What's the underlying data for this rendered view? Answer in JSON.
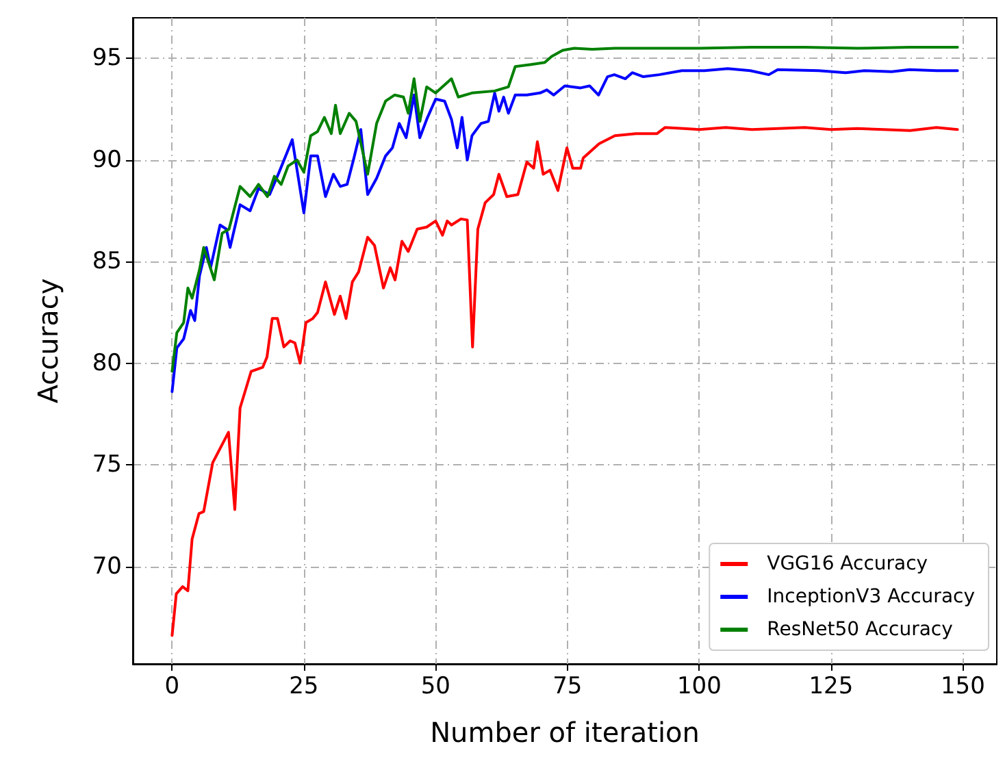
{
  "chart_data": {
    "type": "line",
    "xlabel": "Number of iteration",
    "ylabel": "Accuracy",
    "xlim": [
      -7.45,
      156.45
    ],
    "ylim": [
      65.2,
      97.0
    ],
    "xticks": [
      0,
      25,
      50,
      75,
      100,
      125,
      150
    ],
    "yticks": [
      70,
      75,
      80,
      85,
      90,
      95
    ],
    "grid": true,
    "legend": "bottom right",
    "marker": "none",
    "line_style": "solid",
    "series": [
      {
        "name": "VGG16 Accuracy",
        "color": "#ff0000",
        "x": [
          0,
          0.8,
          2,
          3,
          3.8,
          5.1,
          6,
          7.7,
          10.7,
          11.9,
          12.9,
          15,
          17.2,
          18,
          19,
          20,
          21.2,
          22.4,
          23.3,
          24.3,
          25.4,
          26.7,
          27.6,
          29.1,
          30.8,
          31.9,
          33,
          34.2,
          35.4,
          37.1,
          38.4,
          40.1,
          41.4,
          42.3,
          43.6,
          44.8,
          46.5,
          48.3,
          50,
          51.3,
          52.2,
          53,
          54.8,
          56,
          57,
          58,
          59.4,
          61,
          62,
          63.5,
          65.6,
          67.3,
          68.6,
          69.3,
          70.4,
          71.7,
          73.2,
          74.9,
          76,
          77.5,
          78,
          81,
          84,
          88,
          92,
          93.5,
          97,
          100,
          105,
          110,
          115,
          120,
          125,
          130,
          135,
          140,
          145,
          149
        ],
        "values": [
          66.6,
          68.65,
          69.0,
          68.8,
          71.35,
          72.6,
          72.7,
          75.1,
          76.6,
          72.8,
          77.8,
          79.6,
          79.8,
          80.3,
          82.2,
          82.2,
          80.8,
          81.1,
          81.0,
          80.0,
          82.0,
          82.2,
          82.5,
          84.0,
          82.4,
          83.3,
          82.2,
          84.0,
          84.5,
          86.2,
          85.8,
          83.7,
          84.7,
          84.1,
          86.0,
          85.5,
          86.6,
          86.7,
          87.0,
          86.3,
          87.0,
          86.8,
          87.1,
          87.05,
          80.8,
          86.6,
          87.9,
          88.3,
          89.3,
          88.2,
          88.3,
          89.9,
          89.6,
          90.9,
          89.3,
          89.5,
          88.5,
          90.6,
          89.6,
          89.6,
          90.1,
          90.8,
          91.2,
          91.3,
          91.3,
          91.6,
          91.55,
          91.5,
          91.6,
          91.5,
          91.55,
          91.6,
          91.5,
          91.55,
          91.5,
          91.45,
          91.6,
          91.5
        ]
      },
      {
        "name": "InceptionV3 Accuracy",
        "color": "#0000ff",
        "x": [
          0,
          0.9,
          2.2,
          3.5,
          4.3,
          5.2,
          6.5,
          7.3,
          9.1,
          10.3,
          11,
          12.9,
          14.8,
          16.4,
          18.5,
          20.3,
          22.8,
          25,
          26.3,
          27.6,
          29.1,
          30.6,
          31.9,
          33.2,
          34.5,
          35.8,
          37.1,
          38.8,
          40.5,
          41.8,
          43.1,
          44.4,
          45.9,
          47,
          48.3,
          50,
          51.7,
          53,
          54.1,
          55,
          56,
          56.9,
          58.6,
          60,
          61.2,
          62,
          62.9,
          63.8,
          65.1,
          67.3,
          69.8,
          71.1,
          72.4,
          74.5,
          77.5,
          79.2,
          80.9,
          82.6,
          83.9,
          86,
          87.3,
          89.4,
          92.4,
          96.7,
          101,
          105.4,
          109.7,
          113.2,
          114.9,
          122.7,
          127.8,
          131.3,
          136.5,
          139.9,
          145.1,
          149
        ],
        "values": [
          78.6,
          80.75,
          81.2,
          82.6,
          82.1,
          84.3,
          85.7,
          84.7,
          86.8,
          86.6,
          85.7,
          87.8,
          87.5,
          88.6,
          88.3,
          89.4,
          91.0,
          87.4,
          90.2,
          90.2,
          88.2,
          89.3,
          88.7,
          88.8,
          90.1,
          91.5,
          88.3,
          89.1,
          90.2,
          90.6,
          91.8,
          91.1,
          93.2,
          91.1,
          92.0,
          93.0,
          92.9,
          92.0,
          90.6,
          92.1,
          90.0,
          91.2,
          91.8,
          91.9,
          93.3,
          92.4,
          93.1,
          92.3,
          93.2,
          93.2,
          93.3,
          93.45,
          93.2,
          93.65,
          93.55,
          93.65,
          93.2,
          94.1,
          94.2,
          94.0,
          94.3,
          94.1,
          94.2,
          94.4,
          94.4,
          94.5,
          94.4,
          94.2,
          94.45,
          94.4,
          94.3,
          94.4,
          94.35,
          94.45,
          94.4,
          94.4
        ]
      },
      {
        "name": "ResNet50 Accuracy",
        "color": "#008000",
        "x": [
          0,
          0.9,
          2.2,
          3,
          3.8,
          5.2,
          6,
          8,
          9.5,
          10.8,
          12.9,
          14.8,
          16.4,
          18.1,
          19.4,
          20.7,
          22,
          23.7,
          25,
          26.3,
          27.6,
          28.9,
          30.2,
          31,
          31.9,
          33.6,
          34.9,
          37.1,
          38.8,
          40.5,
          42.2,
          43.9,
          44.8,
          45.9,
          47,
          48.3,
          50,
          51.7,
          53,
          54.3,
          56.9,
          61.2,
          63.8,
          65.1,
          68.1,
          70.7,
          72,
          74.1,
          76.3,
          79.7,
          84,
          90,
          100,
          110,
          120,
          130,
          140,
          149
        ],
        "values": [
          79.6,
          81.5,
          82.0,
          83.7,
          83.2,
          84.6,
          85.7,
          84.1,
          86.4,
          86.6,
          88.7,
          88.2,
          88.8,
          88.2,
          89.2,
          88.8,
          89.7,
          90.0,
          89.4,
          91.2,
          91.4,
          92.1,
          91.3,
          92.7,
          91.3,
          92.3,
          91.9,
          89.3,
          91.8,
          92.9,
          93.2,
          93.1,
          92.3,
          94.0,
          91.9,
          93.6,
          93.3,
          93.7,
          94.0,
          93.1,
          93.3,
          93.4,
          93.6,
          94.6,
          94.7,
          94.8,
          95.1,
          95.4,
          95.5,
          95.45,
          95.5,
          95.5,
          95.5,
          95.55,
          95.55,
          95.5,
          95.55,
          95.55
        ]
      }
    ]
  }
}
